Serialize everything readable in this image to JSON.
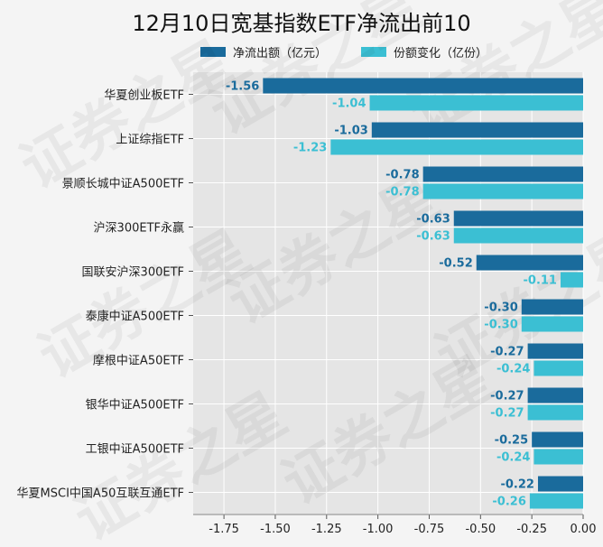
{
  "chart_data": {
    "type": "bar",
    "orientation": "horizontal",
    "title": "12月10日宽基指数ETF净流出前10",
    "categories": [
      "华夏创业板ETF",
      "上证综指ETF",
      "景顺长城中证A500ETF",
      "沪深300ETF永赢",
      "国联安沪深300ETF",
      "泰康中证A500ETF",
      "摩根中证A50ETF",
      "银华中证A500ETF",
      "工银中证A500ETF",
      "华夏MSCI中国A50互联互通ETF"
    ],
    "series": [
      {
        "name": "净流出额（亿元）",
        "color": "#1a6b9c",
        "values": [
          -1.56,
          -1.03,
          -0.78,
          -0.63,
          -0.52,
          -0.3,
          -0.27,
          -0.27,
          -0.25,
          -0.22
        ],
        "labels": [
          "-1.56",
          "-1.03",
          "-0.78",
          "-0.63",
          "-0.52",
          "-0.30",
          "-0.27",
          "-0.27",
          "-0.25",
          "-0.22"
        ]
      },
      {
        "name": "份额变化（亿份）",
        "color": "#3bbfd3",
        "values": [
          -1.04,
          -1.23,
          -0.78,
          -0.63,
          -0.11,
          -0.3,
          -0.24,
          -0.27,
          -0.24,
          -0.26
        ],
        "labels": [
          "-1.04",
          "-1.23",
          "-0.78",
          "-0.63",
          "-0.11",
          "-0.30",
          "-0.24",
          "-0.27",
          "-0.24",
          "-0.26"
        ]
      }
    ],
    "xlim": [
      -1.9,
      0
    ],
    "xticks": [
      -1.75,
      -1.5,
      -1.25,
      -1.0,
      -0.75,
      -0.5,
      -0.25,
      0.0
    ],
    "xtick_labels": [
      "-1.75",
      "-1.50",
      "-1.25",
      "-1.00",
      "-0.75",
      "-0.50",
      "-0.25",
      "0.00"
    ],
    "grid": true,
    "legend_position": "top"
  },
  "watermark": "证券之星"
}
